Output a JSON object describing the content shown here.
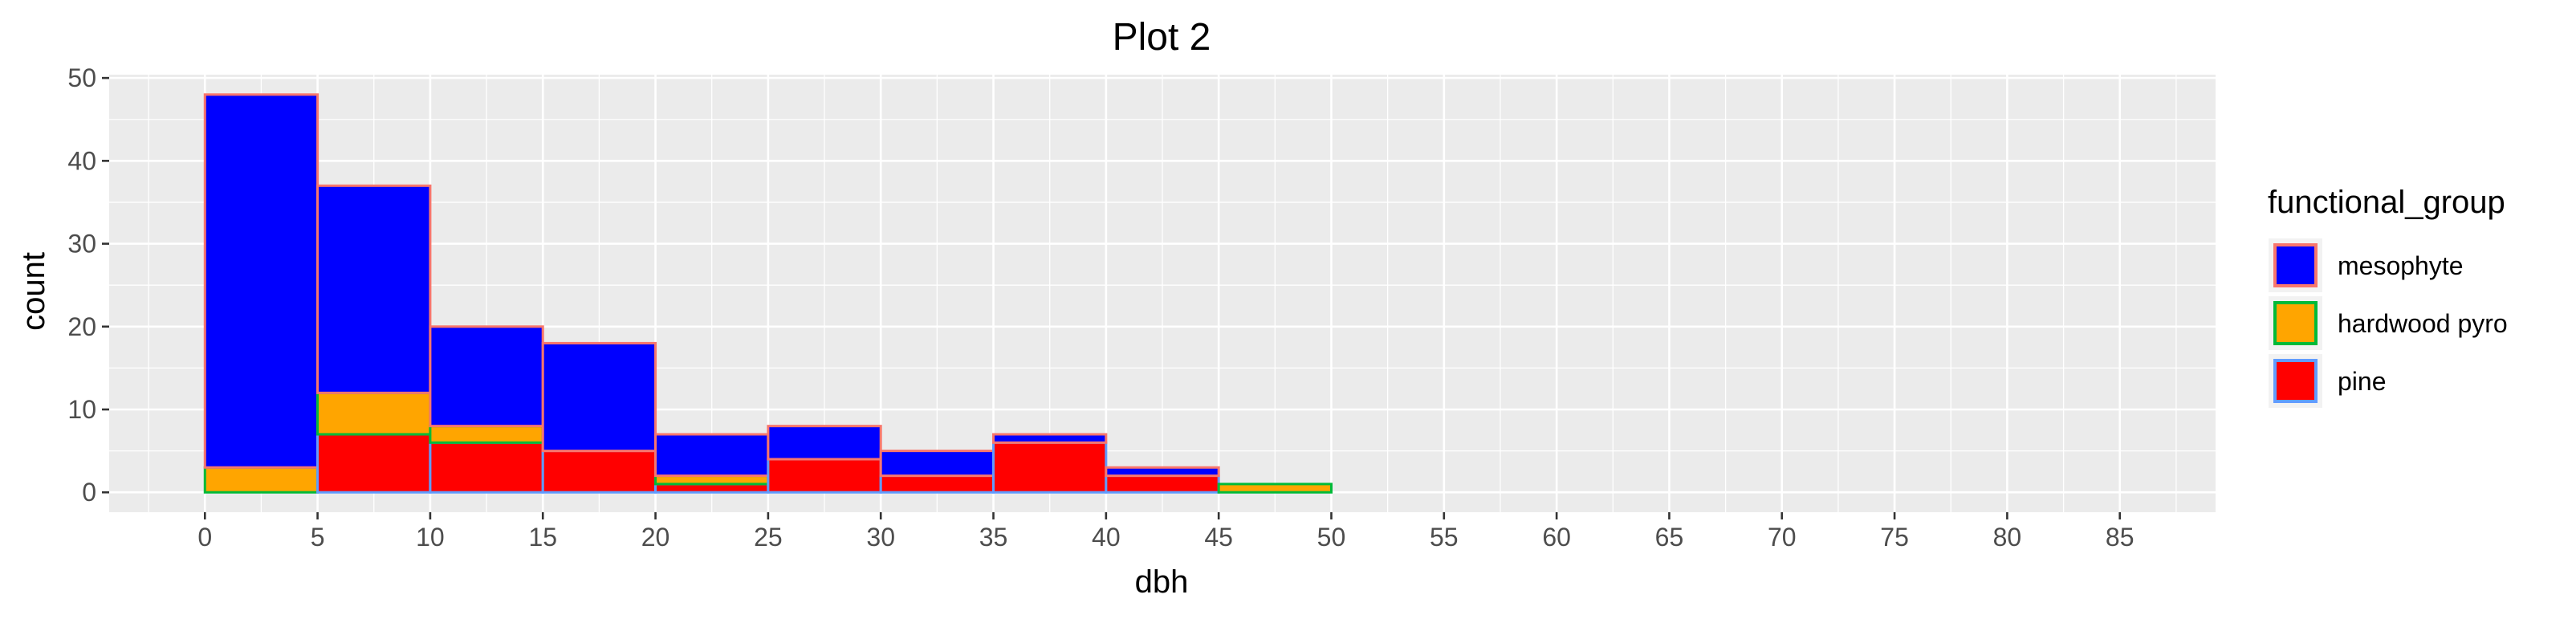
{
  "chart_data": {
    "type": "bar",
    "stacked": true,
    "title": "Plot 2",
    "xlabel": "dbh",
    "ylabel": "count",
    "bin_width": 5,
    "bin_starts": [
      0,
      5,
      10,
      15,
      20,
      25,
      30,
      35,
      40,
      45,
      50,
      55,
      60,
      65,
      70,
      75,
      80
    ],
    "xlim": [
      -4.25,
      89.25
    ],
    "ylim": [
      -2.4,
      50.4
    ],
    "x_ticks": [
      0,
      5,
      10,
      15,
      20,
      25,
      30,
      35,
      40,
      45,
      50,
      55,
      60,
      65,
      70,
      75,
      80,
      85
    ],
    "y_ticks": [
      0,
      10,
      20,
      30,
      40,
      50
    ],
    "grid": true,
    "background": "#ebebeb",
    "legend": {
      "title": "functional_group",
      "position": "right"
    },
    "series": [
      {
        "name": "mesophyte",
        "fill": "#0000ff",
        "outline": "#f8766d",
        "values": [
          45,
          25,
          12,
          13,
          5,
          4,
          3,
          1,
          1,
          0,
          0,
          0,
          0,
          0,
          0,
          0,
          0
        ]
      },
      {
        "name": "hardwood pyro",
        "fill": "#ffa500",
        "outline": "#00ba38",
        "values": [
          3,
          5,
          2,
          0,
          1,
          0,
          0,
          0,
          0,
          1,
          0,
          0,
          0,
          0,
          0,
          0,
          0
        ]
      },
      {
        "name": "pine",
        "fill": "#ff0000",
        "outline": "#619cff",
        "values": [
          0,
          7,
          6,
          5,
          1,
          4,
          2,
          6,
          2,
          0,
          0,
          0,
          0,
          0,
          0,
          0,
          0
        ]
      }
    ]
  }
}
